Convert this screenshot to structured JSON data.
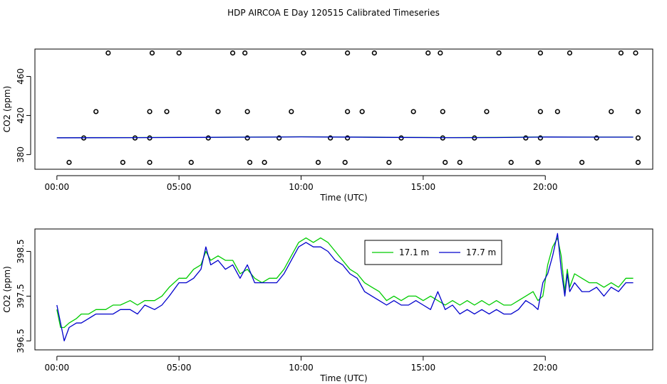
{
  "title": "HDP AIRCOA E  Day 120515  Calibrated Timeseries",
  "colors": {
    "green": "#00cc00",
    "blue": "#0000cc",
    "axis": "#000000"
  },
  "chart_data": [
    {
      "type": "scatter",
      "xlabel": "Time (UTC)",
      "ylabel": "CO2 (ppm)",
      "xlim": [
        -0.9,
        24.4
      ],
      "ylim": [
        365,
        488
      ],
      "x_tick_values": [
        0,
        5,
        10,
        15,
        20
      ],
      "x_tick_labels": [
        "00:00",
        "05:00",
        "10:00",
        "15:00",
        "20:00"
      ],
      "y_tick_values": [
        380,
        420,
        460
      ],
      "y_tick_labels": [
        "380",
        "420",
        "460"
      ],
      "series": [
        {
          "style": "open-circles",
          "color": "#000000",
          "points": [
            [
              0.5,
              372
            ],
            [
              2.7,
              372
            ],
            [
              3.8,
              372
            ],
            [
              5.5,
              372
            ],
            [
              7.9,
              372
            ],
            [
              8.5,
              372
            ],
            [
              10.7,
              372
            ],
            [
              11.8,
              372
            ],
            [
              13.6,
              372
            ],
            [
              15.9,
              372
            ],
            [
              16.5,
              372
            ],
            [
              18.6,
              372
            ],
            [
              19.7,
              372
            ],
            [
              21.5,
              372
            ],
            [
              23.8,
              372
            ],
            [
              1.1,
              397
            ],
            [
              3.2,
              397
            ],
            [
              3.8,
              397
            ],
            [
              6.2,
              397
            ],
            [
              7.8,
              397
            ],
            [
              9.1,
              397
            ],
            [
              11.2,
              397
            ],
            [
              11.9,
              397
            ],
            [
              14.1,
              397
            ],
            [
              15.8,
              397
            ],
            [
              17.1,
              397
            ],
            [
              19.2,
              397
            ],
            [
              19.8,
              397
            ],
            [
              22.1,
              397
            ],
            [
              23.8,
              397
            ],
            [
              1.6,
              424
            ],
            [
              3.8,
              424
            ],
            [
              4.5,
              424
            ],
            [
              6.6,
              424
            ],
            [
              7.8,
              424
            ],
            [
              9.6,
              424
            ],
            [
              11.9,
              424
            ],
            [
              12.5,
              424
            ],
            [
              14.6,
              424
            ],
            [
              15.8,
              424
            ],
            [
              17.6,
              424
            ],
            [
              19.8,
              424
            ],
            [
              20.5,
              424
            ],
            [
              22.7,
              424
            ],
            [
              23.8,
              424
            ],
            [
              2.1,
              484
            ],
            [
              3.9,
              484
            ],
            [
              5.0,
              484
            ],
            [
              7.2,
              484
            ],
            [
              7.7,
              484
            ],
            [
              10.1,
              484
            ],
            [
              11.9,
              484
            ],
            [
              13.0,
              484
            ],
            [
              15.2,
              484
            ],
            [
              15.7,
              484
            ],
            [
              18.1,
              484
            ],
            [
              19.8,
              484
            ],
            [
              21.0,
              484
            ],
            [
              23.1,
              484
            ],
            [
              23.7,
              484
            ]
          ]
        },
        {
          "style": "line",
          "color": "#00cc00",
          "x": [
            0,
            3,
            6,
            8,
            10,
            12,
            14,
            16,
            18,
            20,
            22,
            23.6
          ],
          "y": [
            397.3,
            397.4,
            397.7,
            397.9,
            398.2,
            398.0,
            397.6,
            397.4,
            397.5,
            398.1,
            397.9,
            397.9
          ]
        },
        {
          "style": "line",
          "color": "#0000cc",
          "x": [
            0,
            3,
            6,
            8,
            10,
            12,
            14,
            16,
            18,
            20,
            22,
            23.6
          ],
          "y": [
            397.2,
            397.3,
            397.6,
            397.8,
            398.1,
            397.9,
            397.5,
            397.3,
            397.4,
            398.0,
            397.8,
            397.8
          ]
        }
      ]
    },
    {
      "type": "line",
      "xlabel": "Time (UTC)",
      "ylabel": "CO2 (ppm)",
      "xlim": [
        -0.9,
        24.4
      ],
      "ylim": [
        396.3,
        399.0
      ],
      "x_tick_values": [
        0,
        5,
        10,
        15,
        20
      ],
      "x_tick_labels": [
        "00:00",
        "05:00",
        "10:00",
        "15:00",
        "20:00"
      ],
      "y_tick_values": [
        396.5,
        397.5,
        398.5
      ],
      "y_tick_labels": [
        "396.5",
        "397.5",
        "398.5"
      ],
      "legend": {
        "placement": "top-center",
        "entries": [
          "17.1 m",
          "17.7 m"
        ]
      },
      "series": [
        {
          "name": "17.1 m",
          "color": "#00cc00",
          "x": [
            0,
            0.15,
            0.3,
            0.5,
            0.8,
            1.0,
            1.3,
            1.6,
            2.0,
            2.3,
            2.6,
            3.0,
            3.3,
            3.6,
            4.0,
            4.3,
            4.6,
            5.0,
            5.3,
            5.6,
            5.9,
            6.1,
            6.3,
            6.6,
            6.9,
            7.2,
            7.5,
            7.8,
            8.1,
            8.4,
            8.7,
            9.0,
            9.3,
            9.6,
            9.9,
            10.2,
            10.5,
            10.8,
            11.1,
            11.4,
            11.7,
            12.0,
            12.3,
            12.6,
            12.9,
            13.2,
            13.5,
            13.8,
            14.1,
            14.4,
            14.7,
            15.0,
            15.3,
            15.6,
            15.9,
            16.2,
            16.5,
            16.8,
            17.1,
            17.4,
            17.7,
            18.0,
            18.3,
            18.6,
            18.9,
            19.2,
            19.5,
            19.7,
            19.9,
            20.1,
            20.3,
            20.5,
            20.65,
            20.8,
            20.9,
            21.0,
            21.2,
            21.5,
            21.8,
            22.1,
            22.4,
            22.7,
            23.0,
            23.3,
            23.6
          ],
          "y": [
            397.2,
            396.8,
            396.8,
            396.9,
            397.0,
            397.1,
            397.1,
            397.2,
            397.2,
            397.3,
            397.3,
            397.4,
            397.3,
            397.4,
            397.4,
            397.5,
            397.7,
            397.9,
            397.9,
            398.1,
            398.2,
            398.5,
            398.3,
            398.4,
            398.3,
            398.3,
            398.0,
            398.1,
            397.9,
            397.8,
            397.9,
            397.9,
            398.1,
            398.4,
            398.7,
            398.8,
            398.7,
            398.8,
            398.7,
            398.5,
            398.3,
            398.1,
            398.0,
            397.8,
            397.7,
            397.6,
            397.4,
            397.5,
            397.4,
            397.5,
            397.5,
            397.4,
            397.5,
            397.4,
            397.3,
            397.4,
            397.3,
            397.4,
            397.3,
            397.4,
            397.3,
            397.4,
            397.3,
            397.3,
            397.4,
            397.5,
            397.6,
            397.4,
            397.5,
            398.2,
            398.6,
            398.8,
            398.4,
            397.6,
            398.1,
            397.7,
            398.0,
            397.9,
            397.8,
            397.8,
            397.7,
            397.8,
            397.7,
            397.9,
            397.9
          ]
        },
        {
          "name": "17.7 m",
          "color": "#0000cc",
          "x": [
            0,
            0.15,
            0.3,
            0.5,
            0.8,
            1.0,
            1.3,
            1.6,
            2.0,
            2.3,
            2.6,
            3.0,
            3.3,
            3.6,
            4.0,
            4.3,
            4.6,
            5.0,
            5.3,
            5.6,
            5.9,
            6.1,
            6.3,
            6.6,
            6.9,
            7.2,
            7.5,
            7.8,
            8.1,
            8.4,
            8.7,
            9.0,
            9.3,
            9.6,
            9.9,
            10.2,
            10.5,
            10.8,
            11.1,
            11.4,
            11.7,
            12.0,
            12.3,
            12.6,
            12.9,
            13.2,
            13.5,
            13.8,
            14.1,
            14.4,
            14.7,
            15.0,
            15.3,
            15.6,
            15.9,
            16.2,
            16.5,
            16.8,
            17.1,
            17.4,
            17.7,
            18.0,
            18.3,
            18.6,
            18.9,
            19.2,
            19.5,
            19.7,
            19.9,
            20.1,
            20.3,
            20.5,
            20.65,
            20.8,
            20.9,
            21.0,
            21.2,
            21.5,
            21.8,
            22.1,
            22.4,
            22.7,
            23.0,
            23.3,
            23.6
          ],
          "y": [
            397.3,
            396.9,
            396.5,
            396.8,
            396.9,
            396.9,
            397.0,
            397.1,
            397.1,
            397.1,
            397.2,
            397.2,
            397.1,
            397.3,
            397.2,
            397.3,
            397.5,
            397.8,
            397.8,
            397.9,
            398.1,
            398.6,
            398.2,
            398.3,
            398.1,
            398.2,
            397.9,
            398.2,
            397.8,
            397.8,
            397.8,
            397.8,
            398.0,
            398.3,
            398.6,
            398.7,
            398.6,
            398.6,
            398.5,
            398.3,
            398.2,
            398.0,
            397.9,
            397.6,
            397.5,
            397.4,
            397.3,
            397.4,
            397.3,
            397.3,
            397.4,
            397.3,
            397.2,
            397.6,
            397.2,
            397.3,
            397.1,
            397.2,
            397.1,
            397.2,
            397.1,
            397.2,
            397.1,
            397.1,
            397.2,
            397.4,
            397.3,
            397.2,
            397.8,
            398.0,
            398.4,
            398.9,
            398.1,
            397.5,
            398.0,
            397.6,
            397.8,
            397.6,
            397.6,
            397.7,
            397.5,
            397.7,
            397.6,
            397.8,
            397.8
          ]
        }
      ]
    }
  ]
}
